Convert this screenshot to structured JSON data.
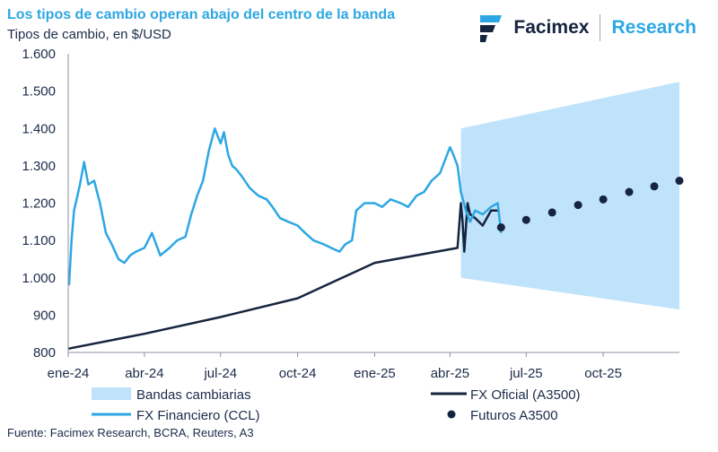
{
  "header": {
    "title": "Los tipos de cambio operan abajo del centro de la banda",
    "subtitle": "Tipos de cambio, en $/USD",
    "brand_name": "Facimex",
    "brand_research": "Research"
  },
  "source": "Fuente: Facimex Research, BCRA, Reuters, A3",
  "colors": {
    "band": "#bfe3fa",
    "ccl": "#2da7e3",
    "oficial": "#16243f",
    "futuros": "#16243f",
    "axis": "#1c2b4a"
  },
  "chart_data": {
    "type": "line",
    "y_ticks": [
      "1.600",
      "1.500",
      "1.400",
      "1.300",
      "1.200",
      "1.100",
      "1.000",
      "900",
      "800"
    ],
    "y_tick_values": [
      1600,
      1500,
      1400,
      1300,
      1200,
      1100,
      1000,
      900,
      800
    ],
    "x_ticks": [
      "ene-24",
      "abr-24",
      "jul-24",
      "oct-24",
      "ene-25",
      "abr-25",
      "jul-25",
      "oct-25"
    ],
    "x_tick_dates": [
      "2024-01-01",
      "2024-04-01",
      "2024-07-01",
      "2024-10-01",
      "2025-01-01",
      "2025-04-01",
      "2025-07-01",
      "2025-10-01"
    ],
    "xlim": [
      "2024-01-01",
      "2025-12-31"
    ],
    "ylim": [
      800,
      1600
    ],
    "legend": {
      "band": "Bandas cambiarias",
      "oficial": "FX Oficial (A3500)",
      "ccl": "FX Financiero (CCL)",
      "futuros": "Futuros A3500"
    },
    "bands": {
      "x": [
        "2025-04-14",
        "2025-12-31"
      ],
      "upper": [
        1400,
        1525
      ],
      "lower": [
        1000,
        915
      ]
    },
    "series": [
      {
        "name": "FX Financiero (CCL)",
        "x": [
          "2024-01-02",
          "2024-01-05",
          "2024-01-08",
          "2024-01-10",
          "2024-01-15",
          "2024-01-20",
          "2024-01-25",
          "2024-02-01",
          "2024-02-08",
          "2024-02-15",
          "2024-02-22",
          "2024-03-01",
          "2024-03-08",
          "2024-03-15",
          "2024-03-22",
          "2024-04-01",
          "2024-04-10",
          "2024-04-20",
          "2024-05-01",
          "2024-05-10",
          "2024-05-20",
          "2024-05-27",
          "2024-06-03",
          "2024-06-10",
          "2024-06-17",
          "2024-06-24",
          "2024-07-01",
          "2024-07-05",
          "2024-07-10",
          "2024-07-15",
          "2024-07-20",
          "2024-07-27",
          "2024-08-05",
          "2024-08-15",
          "2024-08-25",
          "2024-09-01",
          "2024-09-10",
          "2024-09-20",
          "2024-10-01",
          "2024-10-10",
          "2024-10-20",
          "2024-11-01",
          "2024-11-10",
          "2024-11-20",
          "2024-11-27",
          "2024-12-05",
          "2024-12-10",
          "2024-12-20",
          "2025-01-01",
          "2025-01-10",
          "2025-01-20",
          "2025-02-01",
          "2025-02-10",
          "2025-02-20",
          "2025-03-01",
          "2025-03-10",
          "2025-03-20",
          "2025-04-01",
          "2025-04-05",
          "2025-04-10",
          "2025-04-14",
          "2025-04-20",
          "2025-04-25",
          "2025-05-01",
          "2025-05-10",
          "2025-05-20",
          "2025-05-28",
          "2025-06-01"
        ],
        "values": [
          980,
          1100,
          1180,
          1200,
          1250,
          1310,
          1250,
          1260,
          1200,
          1120,
          1090,
          1050,
          1040,
          1060,
          1070,
          1080,
          1120,
          1060,
          1080,
          1100,
          1110,
          1170,
          1220,
          1260,
          1340,
          1400,
          1360,
          1390,
          1330,
          1300,
          1290,
          1270,
          1240,
          1220,
          1210,
          1190,
          1160,
          1150,
          1140,
          1120,
          1100,
          1090,
          1080,
          1070,
          1090,
          1100,
          1180,
          1200,
          1200,
          1190,
          1210,
          1200,
          1190,
          1220,
          1230,
          1260,
          1280,
          1350,
          1330,
          1300,
          1230,
          1180,
          1150,
          1180,
          1170,
          1190,
          1200,
          1120
        ]
      },
      {
        "name": "FX Oficial (A3500)",
        "x": [
          "2024-01-01",
          "2024-04-01",
          "2024-07-01",
          "2024-10-01",
          "2025-01-01",
          "2025-04-10",
          "2025-04-14",
          "2025-04-16",
          "2025-04-18",
          "2025-04-22",
          "2025-04-25",
          "2025-05-01",
          "2025-05-10",
          "2025-05-20",
          "2025-05-28"
        ],
        "values": [
          810,
          850,
          895,
          945,
          1040,
          1080,
          1200,
          1150,
          1070,
          1200,
          1170,
          1160,
          1140,
          1180,
          1180
        ]
      },
      {
        "name": "Futuros A3500",
        "x": [
          "2025-06-01",
          "2025-07-01",
          "2025-08-01",
          "2025-09-01",
          "2025-10-01",
          "2025-11-01",
          "2025-12-01",
          "2025-12-31"
        ],
        "values": [
          1135,
          1155,
          1175,
          1195,
          1210,
          1230,
          1245,
          1260
        ]
      }
    ]
  }
}
